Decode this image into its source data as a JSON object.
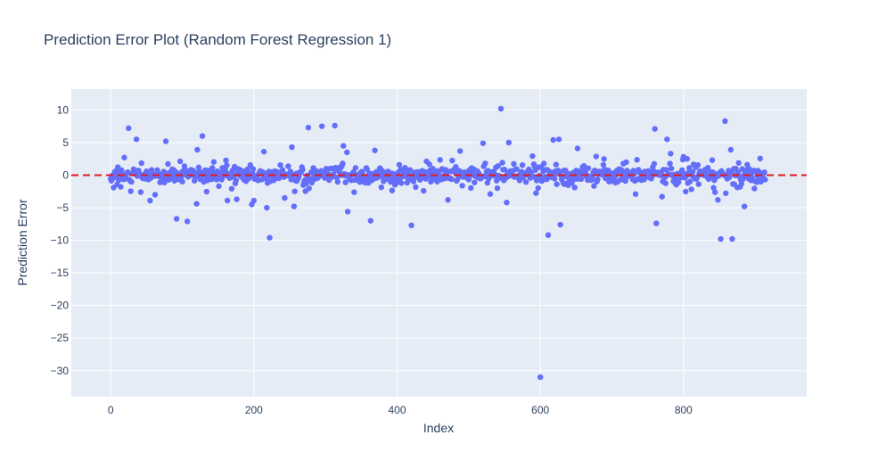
{
  "chart_data": {
    "type": "scatter",
    "title": "Prediction Error Plot (Random Forest Regression 1)",
    "xlabel": "Index",
    "ylabel": "Prediction Error",
    "xlim": [
      -55,
      972
    ],
    "ylim": [
      -34,
      13.2
    ],
    "xticks": [
      0,
      200,
      400,
      600,
      800
    ],
    "yticks": [
      10,
      5,
      0,
      -5,
      -10,
      -15,
      -20,
      -25,
      -30
    ],
    "ytick_labels": [
      "10",
      "5",
      "0",
      "−5",
      "−10",
      "−15",
      "−20",
      "−25",
      "−30"
    ],
    "zero_line": {
      "y": 0,
      "style": "dashed"
    },
    "grid": true,
    "colors": {
      "marker": "#636efa",
      "zero_line": "#e31a1c",
      "plot_bg": "#e5ecf6",
      "grid": "#ffffff"
    },
    "n_points": 915,
    "outliers": [
      {
        "x": 25,
        "y": 7.2
      },
      {
        "x": 36,
        "y": 5.5
      },
      {
        "x": 42,
        "y": -2.6
      },
      {
        "x": 55,
        "y": -3.9
      },
      {
        "x": 62,
        "y": -3.0
      },
      {
        "x": 77,
        "y": 5.2
      },
      {
        "x": 92,
        "y": -6.7
      },
      {
        "x": 107,
        "y": -7.1
      },
      {
        "x": 120,
        "y": -4.4
      },
      {
        "x": 128,
        "y": 6.0
      },
      {
        "x": 163,
        "y": -3.9
      },
      {
        "x": 197,
        "y": -4.5
      },
      {
        "x": 200,
        "y": -3.9
      },
      {
        "x": 218,
        "y": -5.0
      },
      {
        "x": 222,
        "y": -9.6
      },
      {
        "x": 214,
        "y": 3.6
      },
      {
        "x": 243,
        "y": -3.5
      },
      {
        "x": 253,
        "y": 4.3
      },
      {
        "x": 256,
        "y": -4.8
      },
      {
        "x": 276,
        "y": 7.3
      },
      {
        "x": 295,
        "y": 7.5
      },
      {
        "x": 313,
        "y": 7.6
      },
      {
        "x": 325,
        "y": 4.5
      },
      {
        "x": 331,
        "y": -5.6
      },
      {
        "x": 363,
        "y": -7.0
      },
      {
        "x": 369,
        "y": 3.8
      },
      {
        "x": 420,
        "y": -7.7
      },
      {
        "x": 471,
        "y": -3.8
      },
      {
        "x": 488,
        "y": 3.7
      },
      {
        "x": 520,
        "y": 4.9
      },
      {
        "x": 530,
        "y": -2.9
      },
      {
        "x": 545,
        "y": 10.2
      },
      {
        "x": 553,
        "y": -4.2
      },
      {
        "x": 556,
        "y": 5.0
      },
      {
        "x": 600,
        "y": -31.0
      },
      {
        "x": 611,
        "y": -9.2
      },
      {
        "x": 618,
        "y": 5.4
      },
      {
        "x": 626,
        "y": 5.5
      },
      {
        "x": 628,
        "y": -7.6
      },
      {
        "x": 652,
        "y": 4.1
      },
      {
        "x": 760,
        "y": 7.1
      },
      {
        "x": 762,
        "y": -7.4
      },
      {
        "x": 777,
        "y": 5.5
      },
      {
        "x": 848,
        "y": -3.8
      },
      {
        "x": 852,
        "y": -9.8
      },
      {
        "x": 858,
        "y": 8.3
      },
      {
        "x": 866,
        "y": 3.9
      },
      {
        "x": 868,
        "y": -9.8
      },
      {
        "x": 885,
        "y": -4.8
      },
      {
        "x": 770,
        "y": -3.3
      },
      {
        "x": 782,
        "y": 3.3
      },
      {
        "x": 330,
        "y": 3.5
      },
      {
        "x": 121,
        "y": 3.9
      },
      {
        "x": 176,
        "y": -3.7
      },
      {
        "x": 437,
        "y": -2.4
      }
    ]
  }
}
